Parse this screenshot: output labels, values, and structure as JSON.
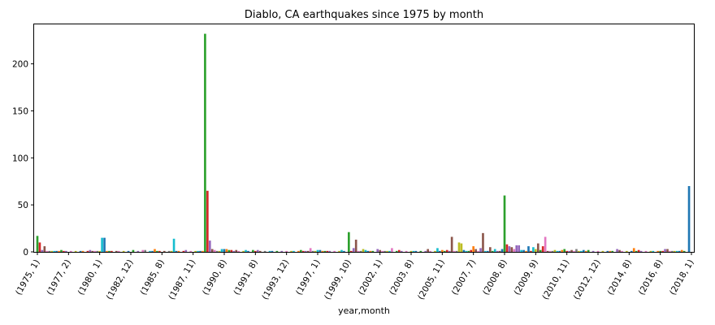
{
  "chart_data": {
    "type": "bar",
    "title": "Diablo, CA earthquakes since 1975 by month",
    "xlabel": "year,month",
    "ylabel": "",
    "ylim": [
      0,
      242
    ],
    "yticks": [
      0,
      50,
      100,
      150,
      200
    ],
    "categories": [
      "(1975, 1)",
      "(1977, 2)",
      "(1980, 1)",
      "(1982, 12)",
      "(1985, 8)",
      "(1987, 11)",
      "(1990, 8)",
      "(1991, 8)",
      "(1993, 12)",
      "(1997, 1)",
      "(1999, 10)",
      "(2002, 1)",
      "(2003, 8)",
      "(2005, 11)",
      "(2007, 7)",
      "(2008, 8)",
      "(2009, 9)",
      "(2010, 11)",
      "(2012, 12)",
      "(2014, 8)",
      "(2016, 8)",
      "(2018, 1)"
    ],
    "bars": [
      {
        "i": 0,
        "value": 17,
        "color": "#2ca02c"
      },
      {
        "i": 1,
        "value": 10,
        "color": "#d62728"
      },
      {
        "i": 2,
        "value": 2,
        "color": "#9467bd"
      },
      {
        "i": 3,
        "value": 6,
        "color": "#8c564b"
      },
      {
        "i": 4,
        "value": 1,
        "color": "#e377c2"
      },
      {
        "i": 5,
        "value": 1,
        "color": "#7f7f7f"
      },
      {
        "i": 6,
        "value": 1,
        "color": "#bcbd22"
      },
      {
        "i": 7,
        "value": 1,
        "color": "#17becf"
      },
      {
        "i": 8,
        "value": 1,
        "color": "#1f77b4"
      },
      {
        "i": 9,
        "value": 1,
        "color": "#ff7f0e"
      },
      {
        "i": 10,
        "value": 2,
        "color": "#2ca02c"
      },
      {
        "i": 11,
        "value": 1,
        "color": "#d62728"
      },
      {
        "i": 12,
        "value": 1,
        "color": "#9467bd"
      },
      {
        "i": 14,
        "value": 1,
        "color": "#e377c2"
      },
      {
        "i": 16,
        "value": 1,
        "color": "#bcbd22"
      },
      {
        "i": 18,
        "value": 1,
        "color": "#1f77b4"
      },
      {
        "i": 19,
        "value": 1,
        "color": "#ff7f0e"
      },
      {
        "i": 21,
        "value": 1,
        "color": "#d62728"
      },
      {
        "i": 22,
        "value": 2,
        "color": "#9467bd"
      },
      {
        "i": 23,
        "value": 1,
        "color": "#8c564b"
      },
      {
        "i": 24,
        "value": 1,
        "color": "#e377c2"
      },
      {
        "i": 25,
        "value": 1,
        "color": "#7f7f7f"
      },
      {
        "i": 26,
        "value": 1,
        "color": "#bcbd22"
      },
      {
        "i": 27,
        "value": 15,
        "color": "#17becf"
      },
      {
        "i": 28,
        "value": 15,
        "color": "#1f77b4"
      },
      {
        "i": 29,
        "value": 1,
        "color": "#ff7f0e"
      },
      {
        "i": 30,
        "value": 1,
        "color": "#2ca02c"
      },
      {
        "i": 31,
        "value": 1,
        "color": "#d62728"
      },
      {
        "i": 33,
        "value": 1,
        "color": "#8c564b"
      },
      {
        "i": 34,
        "value": 1,
        "color": "#e377c2"
      },
      {
        "i": 36,
        "value": 1,
        "color": "#bcbd22"
      },
      {
        "i": 38,
        "value": 1,
        "color": "#1f77b4"
      },
      {
        "i": 40,
        "value": 2,
        "color": "#2ca02c"
      },
      {
        "i": 42,
        "value": 1,
        "color": "#9467bd"
      },
      {
        "i": 44,
        "value": 2,
        "color": "#e377c2"
      },
      {
        "i": 45,
        "value": 2,
        "color": "#7f7f7f"
      },
      {
        "i": 47,
        "value": 1,
        "color": "#17becf"
      },
      {
        "i": 48,
        "value": 1,
        "color": "#1f77b4"
      },
      {
        "i": 49,
        "value": 3,
        "color": "#ff7f0e"
      },
      {
        "i": 50,
        "value": 1,
        "color": "#2ca02c"
      },
      {
        "i": 51,
        "value": 1,
        "color": "#d62728"
      },
      {
        "i": 53,
        "value": 1,
        "color": "#8c564b"
      },
      {
        "i": 55,
        "value": 1,
        "color": "#7f7f7f"
      },
      {
        "i": 56,
        "value": 1,
        "color": "#bcbd22"
      },
      {
        "i": 57,
        "value": 14,
        "color": "#17becf"
      },
      {
        "i": 58,
        "value": 1,
        "color": "#1f77b4"
      },
      {
        "i": 59,
        "value": 1,
        "color": "#ff7f0e"
      },
      {
        "i": 61,
        "value": 1,
        "color": "#d62728"
      },
      {
        "i": 62,
        "value": 2,
        "color": "#9467bd"
      },
      {
        "i": 64,
        "value": 1,
        "color": "#e377c2"
      },
      {
        "i": 66,
        "value": 1,
        "color": "#bcbd22"
      },
      {
        "i": 67,
        "value": 1,
        "color": "#17becf"
      },
      {
        "i": 68,
        "value": 1,
        "color": "#1f77b4"
      },
      {
        "i": 69,
        "value": 1,
        "color": "#ff7f0e"
      },
      {
        "i": 70,
        "value": 232,
        "color": "#2ca02c"
      },
      {
        "i": 71,
        "value": 65,
        "color": "#d62728"
      },
      {
        "i": 72,
        "value": 12,
        "color": "#9467bd"
      },
      {
        "i": 73,
        "value": 3,
        "color": "#8c564b"
      },
      {
        "i": 74,
        "value": 2,
        "color": "#e377c2"
      },
      {
        "i": 75,
        "value": 1,
        "color": "#7f7f7f"
      },
      {
        "i": 76,
        "value": 1,
        "color": "#bcbd22"
      },
      {
        "i": 77,
        "value": 3,
        "color": "#17becf"
      },
      {
        "i": 78,
        "value": 3,
        "color": "#1f77b4"
      },
      {
        "i": 79,
        "value": 3,
        "color": "#ff7f0e"
      },
      {
        "i": 80,
        "value": 2,
        "color": "#2ca02c"
      },
      {
        "i": 81,
        "value": 2,
        "color": "#d62728"
      },
      {
        "i": 82,
        "value": 1,
        "color": "#9467bd"
      },
      {
        "i": 83,
        "value": 2,
        "color": "#8c564b"
      },
      {
        "i": 84,
        "value": 1,
        "color": "#e377c2"
      },
      {
        "i": 86,
        "value": 1,
        "color": "#bcbd22"
      },
      {
        "i": 87,
        "value": 2,
        "color": "#17becf"
      },
      {
        "i": 88,
        "value": 1,
        "color": "#1f77b4"
      },
      {
        "i": 90,
        "value": 2,
        "color": "#2ca02c"
      },
      {
        "i": 91,
        "value": 1,
        "color": "#d62728"
      },
      {
        "i": 92,
        "value": 2,
        "color": "#9467bd"
      },
      {
        "i": 93,
        "value": 1,
        "color": "#8c564b"
      },
      {
        "i": 95,
        "value": 1,
        "color": "#7f7f7f"
      },
      {
        "i": 97,
        "value": 1,
        "color": "#17becf"
      },
      {
        "i": 98,
        "value": 1,
        "color": "#1f77b4"
      },
      {
        "i": 100,
        "value": 1,
        "color": "#2ca02c"
      },
      {
        "i": 102,
        "value": 1,
        "color": "#9467bd"
      },
      {
        "i": 104,
        "value": 1,
        "color": "#e377c2"
      },
      {
        "i": 106,
        "value": 1,
        "color": "#bcbd22"
      },
      {
        "i": 107,
        "value": 1,
        "color": "#17becf"
      },
      {
        "i": 109,
        "value": 1,
        "color": "#ff7f0e"
      },
      {
        "i": 110,
        "value": 2,
        "color": "#2ca02c"
      },
      {
        "i": 111,
        "value": 1,
        "color": "#d62728"
      },
      {
        "i": 112,
        "value": 1,
        "color": "#9467bd"
      },
      {
        "i": 113,
        "value": 1,
        "color": "#8c564b"
      },
      {
        "i": 114,
        "value": 4,
        "color": "#e377c2"
      },
      {
        "i": 115,
        "value": 1,
        "color": "#7f7f7f"
      },
      {
        "i": 116,
        "value": 1,
        "color": "#bcbd22"
      },
      {
        "i": 117,
        "value": 2,
        "color": "#17becf"
      },
      {
        "i": 118,
        "value": 2,
        "color": "#1f77b4"
      },
      {
        "i": 119,
        "value": 1,
        "color": "#ff7f0e"
      },
      {
        "i": 120,
        "value": 1,
        "color": "#2ca02c"
      },
      {
        "i": 121,
        "value": 1,
        "color": "#d62728"
      },
      {
        "i": 122,
        "value": 1,
        "color": "#9467bd"
      },
      {
        "i": 124,
        "value": 1,
        "color": "#e377c2"
      },
      {
        "i": 126,
        "value": 1,
        "color": "#bcbd22"
      },
      {
        "i": 127,
        "value": 2,
        "color": "#17becf"
      },
      {
        "i": 128,
        "value": 1,
        "color": "#1f77b4"
      },
      {
        "i": 130,
        "value": 21,
        "color": "#2ca02c"
      },
      {
        "i": 131,
        "value": 1,
        "color": "#d62728"
      },
      {
        "i": 132,
        "value": 4,
        "color": "#9467bd"
      },
      {
        "i": 133,
        "value": 13,
        "color": "#8c564b"
      },
      {
        "i": 134,
        "value": 1,
        "color": "#e377c2"
      },
      {
        "i": 135,
        "value": 1,
        "color": "#7f7f7f"
      },
      {
        "i": 136,
        "value": 3,
        "color": "#bcbd22"
      },
      {
        "i": 137,
        "value": 2,
        "color": "#17becf"
      },
      {
        "i": 138,
        "value": 1,
        "color": "#1f77b4"
      },
      {
        "i": 139,
        "value": 1,
        "color": "#ff7f0e"
      },
      {
        "i": 140,
        "value": 1,
        "color": "#2ca02c"
      },
      {
        "i": 142,
        "value": 3,
        "color": "#9467bd"
      },
      {
        "i": 143,
        "value": 2,
        "color": "#8c564b"
      },
      {
        "i": 144,
        "value": 1,
        "color": "#e377c2"
      },
      {
        "i": 145,
        "value": 1,
        "color": "#7f7f7f"
      },
      {
        "i": 146,
        "value": 1,
        "color": "#bcbd22"
      },
      {
        "i": 147,
        "value": 1,
        "color": "#17becf"
      },
      {
        "i": 148,
        "value": 4,
        "color": "#e377c2"
      },
      {
        "i": 150,
        "value": 1,
        "color": "#2ca02c"
      },
      {
        "i": 151,
        "value": 2,
        "color": "#d62728"
      },
      {
        "i": 152,
        "value": 1,
        "color": "#9467bd"
      },
      {
        "i": 154,
        "value": 1,
        "color": "#e377c2"
      },
      {
        "i": 156,
        "value": 1,
        "color": "#bcbd22"
      },
      {
        "i": 157,
        "value": 1,
        "color": "#17becf"
      },
      {
        "i": 158,
        "value": 1,
        "color": "#1f77b4"
      },
      {
        "i": 160,
        "value": 1,
        "color": "#2ca02c"
      },
      {
        "i": 162,
        "value": 1,
        "color": "#9467bd"
      },
      {
        "i": 163,
        "value": 3,
        "color": "#8c564b"
      },
      {
        "i": 164,
        "value": 1,
        "color": "#e377c2"
      },
      {
        "i": 166,
        "value": 1,
        "color": "#bcbd22"
      },
      {
        "i": 167,
        "value": 4,
        "color": "#17becf"
      },
      {
        "i": 168,
        "value": 1,
        "color": "#1f77b4"
      },
      {
        "i": 169,
        "value": 2,
        "color": "#ff7f0e"
      },
      {
        "i": 170,
        "value": 1,
        "color": "#2ca02c"
      },
      {
        "i": 171,
        "value": 2,
        "color": "#d62728"
      },
      {
        "i": 172,
        "value": 1,
        "color": "#9467bd"
      },
      {
        "i": 173,
        "value": 16,
        "color": "#8c564b"
      },
      {
        "i": 174,
        "value": 1,
        "color": "#e377c2"
      },
      {
        "i": 175,
        "value": 1,
        "color": "#7f7f7f"
      },
      {
        "i": 176,
        "value": 10,
        "color": "#bcbd22"
      },
      {
        "i": 177,
        "value": 9,
        "color": "#bcbd22"
      },
      {
        "i": 178,
        "value": 2,
        "color": "#1f77b4"
      },
      {
        "i": 179,
        "value": 1,
        "color": "#17becf"
      },
      {
        "i": 180,
        "value": 1,
        "color": "#2ca02c"
      },
      {
        "i": 181,
        "value": 2,
        "color": "#d62728"
      },
      {
        "i": 182,
        "value": 6,
        "color": "#ff7f0e"
      },
      {
        "i": 183,
        "value": 3,
        "color": "#8c564b"
      },
      {
        "i": 184,
        "value": 1,
        "color": "#e377c2"
      },
      {
        "i": 185,
        "value": 4,
        "color": "#9467bd"
      },
      {
        "i": 186,
        "value": 20,
        "color": "#8c564b"
      },
      {
        "i": 187,
        "value": 1,
        "color": "#17becf"
      },
      {
        "i": 188,
        "value": 1,
        "color": "#1f77b4"
      },
      {
        "i": 189,
        "value": 5,
        "color": "#8c564b"
      },
      {
        "i": 190,
        "value": 1,
        "color": "#2ca02c"
      },
      {
        "i": 191,
        "value": 3,
        "color": "#17becf"
      },
      {
        "i": 192,
        "value": 1,
        "color": "#9467bd"
      },
      {
        "i": 193,
        "value": 1,
        "color": "#8c564b"
      },
      {
        "i": 194,
        "value": 3,
        "color": "#1f77b4"
      },
      {
        "i": 195,
        "value": 60,
        "color": "#2ca02c"
      },
      {
        "i": 196,
        "value": 8,
        "color": "#d62728"
      },
      {
        "i": 197,
        "value": 6,
        "color": "#9467bd"
      },
      {
        "i": 198,
        "value": 5,
        "color": "#8c564b"
      },
      {
        "i": 199,
        "value": 3,
        "color": "#e377c2"
      },
      {
        "i": 200,
        "value": 7,
        "color": "#9467bd"
      },
      {
        "i": 201,
        "value": 7,
        "color": "#9467bd"
      },
      {
        "i": 202,
        "value": 2,
        "color": "#17becf"
      },
      {
        "i": 203,
        "value": 2,
        "color": "#1f77b4"
      },
      {
        "i": 204,
        "value": 1,
        "color": "#ff7f0e"
      },
      {
        "i": 205,
        "value": 6,
        "color": "#1f77b4"
      },
      {
        "i": 206,
        "value": 1,
        "color": "#d62728"
      },
      {
        "i": 207,
        "value": 5,
        "color": "#17becf"
      },
      {
        "i": 208,
        "value": 3,
        "color": "#bcbd22"
      },
      {
        "i": 209,
        "value": 9,
        "color": "#8c564b"
      },
      {
        "i": 210,
        "value": 2,
        "color": "#2ca02c"
      },
      {
        "i": 211,
        "value": 6,
        "color": "#d62728"
      },
      {
        "i": 212,
        "value": 16,
        "color": "#e377c2"
      },
      {
        "i": 213,
        "value": 1,
        "color": "#8c564b"
      },
      {
        "i": 214,
        "value": 1,
        "color": "#e377c2"
      },
      {
        "i": 215,
        "value": 1,
        "color": "#7f7f7f"
      },
      {
        "i": 216,
        "value": 2,
        "color": "#bcbd22"
      },
      {
        "i": 217,
        "value": 1,
        "color": "#17becf"
      },
      {
        "i": 218,
        "value": 1,
        "color": "#1f77b4"
      },
      {
        "i": 219,
        "value": 2,
        "color": "#ff7f0e"
      },
      {
        "i": 220,
        "value": 3,
        "color": "#2ca02c"
      },
      {
        "i": 221,
        "value": 1,
        "color": "#d62728"
      },
      {
        "i": 222,
        "value": 1,
        "color": "#9467bd"
      },
      {
        "i": 223,
        "value": 2,
        "color": "#8c564b"
      },
      {
        "i": 224,
        "value": 1,
        "color": "#e377c2"
      },
      {
        "i": 225,
        "value": 3,
        "color": "#7f7f7f"
      },
      {
        "i": 226,
        "value": 1,
        "color": "#bcbd22"
      },
      {
        "i": 227,
        "value": 1,
        "color": "#17becf"
      },
      {
        "i": 228,
        "value": 2,
        "color": "#1f77b4"
      },
      {
        "i": 229,
        "value": 1,
        "color": "#ff7f0e"
      },
      {
        "i": 230,
        "value": 2,
        "color": "#2ca02c"
      },
      {
        "i": 232,
        "value": 1,
        "color": "#9467bd"
      },
      {
        "i": 234,
        "value": 1,
        "color": "#e377c2"
      },
      {
        "i": 236,
        "value": 1,
        "color": "#bcbd22"
      },
      {
        "i": 238,
        "value": 1,
        "color": "#1f77b4"
      },
      {
        "i": 239,
        "value": 1,
        "color": "#ff7f0e"
      },
      {
        "i": 240,
        "value": 1,
        "color": "#2ca02c"
      },
      {
        "i": 242,
        "value": 3,
        "color": "#9467bd"
      },
      {
        "i": 243,
        "value": 2,
        "color": "#8c564b"
      },
      {
        "i": 244,
        "value": 1,
        "color": "#e377c2"
      },
      {
        "i": 246,
        "value": 1,
        "color": "#bcbd22"
      },
      {
        "i": 248,
        "value": 1,
        "color": "#1f77b4"
      },
      {
        "i": 249,
        "value": 4,
        "color": "#ff7f0e"
      },
      {
        "i": 250,
        "value": 1,
        "color": "#2ca02c"
      },
      {
        "i": 251,
        "value": 2,
        "color": "#d62728"
      },
      {
        "i": 252,
        "value": 1,
        "color": "#9467bd"
      },
      {
        "i": 254,
        "value": 1,
        "color": "#e377c2"
      },
      {
        "i": 256,
        "value": 1,
        "color": "#bcbd22"
      },
      {
        "i": 257,
        "value": 1,
        "color": "#17becf"
      },
      {
        "i": 259,
        "value": 1,
        "color": "#ff7f0e"
      },
      {
        "i": 260,
        "value": 1,
        "color": "#2ca02c"
      },
      {
        "i": 261,
        "value": 1,
        "color": "#d62728"
      },
      {
        "i": 262,
        "value": 3,
        "color": "#9467bd"
      },
      {
        "i": 263,
        "value": 3,
        "color": "#8c564b"
      },
      {
        "i": 264,
        "value": 1,
        "color": "#e377c2"
      },
      {
        "i": 265,
        "value": 1,
        "color": "#7f7f7f"
      },
      {
        "i": 266,
        "value": 1,
        "color": "#bcbd22"
      },
      {
        "i": 267,
        "value": 1,
        "color": "#17becf"
      },
      {
        "i": 268,
        "value": 1,
        "color": "#1f77b4"
      },
      {
        "i": 269,
        "value": 2,
        "color": "#ff7f0e"
      },
      {
        "i": 270,
        "value": 1,
        "color": "#2ca02c"
      },
      {
        "i": 272,
        "value": 70,
        "color": "#1f77b4"
      }
    ]
  }
}
